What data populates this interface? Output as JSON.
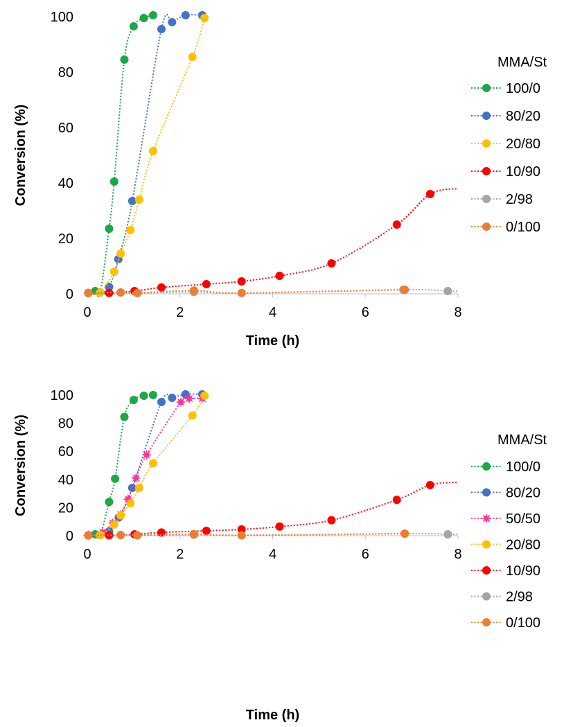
{
  "chart_data": [
    {
      "type": "scatter",
      "title": "",
      "xlabel": "Time (h)",
      "ylabel": "Conversion (%)",
      "xlim": [
        0,
        8
      ],
      "ylim": [
        0,
        100
      ],
      "xticks": [
        0,
        2,
        4,
        6,
        8
      ],
      "yticks": [
        0,
        20,
        40,
        60,
        80,
        100
      ],
      "grid": false,
      "legend_title": "MMA/St",
      "legend_position": "right",
      "line_style": "dotted smoothed",
      "series": [
        {
          "name": "100/0",
          "color": "#1aa84a",
          "marker": "circle",
          "points": [
            [
              0.02,
              0.3
            ],
            [
              0.17,
              1
            ],
            [
              0.28,
              0.5
            ],
            [
              0.47,
              23.5
            ],
            [
              0.58,
              40.5
            ],
            [
              0.8,
              84.5
            ],
            [
              1.0,
              96.5
            ],
            [
              1.22,
              99.5
            ],
            [
              1.42,
              100.5
            ]
          ]
        },
        {
          "name": "80/20",
          "color": "#4472c4",
          "marker": "circle",
          "points": [
            [
              0.02,
              0.3
            ],
            [
              0.28,
              0.5
            ],
            [
              0.47,
              2.5
            ],
            [
              0.67,
              12.5
            ],
            [
              0.97,
              33.5
            ],
            [
              1.6,
              95.5
            ],
            [
              1.83,
              98
            ],
            [
              2.12,
              100.5
            ],
            [
              2.48,
              100.5
            ]
          ]
        },
        {
          "name": "20/80",
          "color": "#ffc000",
          "marker": "circle",
          "points": [
            [
              0.02,
              0.3
            ],
            [
              0.28,
              0.5
            ],
            [
              0.58,
              8
            ],
            [
              0.72,
              14.5
            ],
            [
              0.93,
              23
            ],
            [
              1.12,
              34
            ],
            [
              1.42,
              51.5
            ],
            [
              2.27,
              85.5
            ],
            [
              2.53,
              99.5
            ]
          ]
        },
        {
          "name": "10/90",
          "color": "#ff0000",
          "marker": "circle",
          "points": [
            [
              0.02,
              0.3
            ],
            [
              0.47,
              0.3
            ],
            [
              1.02,
              1
            ],
            [
              1.6,
              2.3
            ],
            [
              2.57,
              3.5
            ],
            [
              3.33,
              4.5
            ],
            [
              4.15,
              6.5
            ],
            [
              5.27,
              11
            ],
            [
              6.68,
              25
            ],
            [
              7.4,
              36
            ],
            [
              8.0,
              38
            ]
          ]
        },
        {
          "name": "2/98",
          "color": "#a5a5a5",
          "marker": "circle",
          "points": [
            [
              0.02,
              0.3
            ],
            [
              0.72,
              0.5
            ],
            [
              1.08,
              0.3
            ],
            [
              2.3,
              0.7
            ],
            [
              3.33,
              0.3
            ],
            [
              6.82,
              1.5
            ],
            [
              7.78,
              1
            ],
            [
              8.0,
              1
            ]
          ]
        },
        {
          "name": "0/100",
          "color": "#ed7d31",
          "marker": "circle",
          "points": [
            [
              0.02,
              0.3
            ],
            [
              0.72,
              0.5
            ],
            [
              1.08,
              0.3
            ],
            [
              2.3,
              1.2
            ],
            [
              3.33,
              0.3
            ],
            [
              6.85,
              1.5
            ]
          ]
        }
      ]
    },
    {
      "type": "scatter",
      "title": "",
      "xlabel": "Time (h)",
      "ylabel": "Conversion (%)",
      "xlim": [
        0,
        8
      ],
      "ylim": [
        0,
        100
      ],
      "xticks": [
        0,
        2,
        4,
        6,
        8
      ],
      "yticks": [
        0,
        20,
        40,
        60,
        80,
        100
      ],
      "grid": false,
      "legend_title": "MMA/St",
      "legend_position": "right",
      "line_style": "dotted smoothed",
      "series": [
        {
          "name": "100/0",
          "color": "#1aa84a",
          "marker": "circle",
          "points": [
            [
              0.02,
              0.3
            ],
            [
              0.17,
              1
            ],
            [
              0.28,
              0.5
            ],
            [
              0.47,
              24
            ],
            [
              0.6,
              40.5
            ],
            [
              0.8,
              84.5
            ],
            [
              1.0,
              96.5
            ],
            [
              1.22,
              99.5
            ],
            [
              1.42,
              100
            ]
          ]
        },
        {
          "name": "80/20",
          "color": "#4472c4",
          "marker": "circle",
          "points": [
            [
              0.02,
              0.3
            ],
            [
              0.28,
              0.5
            ],
            [
              0.47,
              3
            ],
            [
              0.68,
              13
            ],
            [
              0.97,
              34
            ],
            [
              1.6,
              95
            ],
            [
              1.83,
              98
            ],
            [
              2.12,
              100.5
            ],
            [
              2.48,
              100.5
            ]
          ]
        },
        {
          "name": "50/50",
          "color": "#ff3399",
          "marker": "star",
          "points": [
            [
              0.02,
              0.3
            ],
            [
              0.33,
              2.5
            ],
            [
              0.55,
              9
            ],
            [
              0.72,
              15
            ],
            [
              0.88,
              26
            ],
            [
              1.05,
              41
            ],
            [
              1.28,
              57.5
            ],
            [
              2.02,
              95
            ],
            [
              2.2,
              97.5
            ],
            [
              2.48,
              97.5
            ]
          ]
        },
        {
          "name": "20/80",
          "color": "#ffc000",
          "marker": "circle",
          "points": [
            [
              0.02,
              0.3
            ],
            [
              0.28,
              0.5
            ],
            [
              0.58,
              8
            ],
            [
              0.72,
              14.5
            ],
            [
              0.93,
              23
            ],
            [
              1.12,
              34
            ],
            [
              1.42,
              51.5
            ],
            [
              2.27,
              85.5
            ],
            [
              2.53,
              99.5
            ]
          ]
        },
        {
          "name": "10/90",
          "color": "#ff0000",
          "marker": "circle",
          "points": [
            [
              0.02,
              0.3
            ],
            [
              0.47,
              0.3
            ],
            [
              1.02,
              1
            ],
            [
              1.6,
              2.3
            ],
            [
              2.57,
              3.5
            ],
            [
              3.33,
              4.5
            ],
            [
              4.15,
              6.5
            ],
            [
              5.27,
              11
            ],
            [
              6.68,
              25.5
            ],
            [
              7.4,
              36
            ],
            [
              8.0,
              38
            ]
          ]
        },
        {
          "name": "2/98",
          "color": "#a5a5a5",
          "marker": "circle",
          "points": [
            [
              0.02,
              0.3
            ],
            [
              0.72,
              0.5
            ],
            [
              1.08,
              0.3
            ],
            [
              2.3,
              0.7
            ],
            [
              3.33,
              0.3
            ],
            [
              6.85,
              1.5
            ],
            [
              7.78,
              1
            ],
            [
              8.0,
              1
            ]
          ]
        },
        {
          "name": "0/100",
          "color": "#ed7d31",
          "marker": "circle",
          "points": [
            [
              0.02,
              0.3
            ],
            [
              0.72,
              0.5
            ],
            [
              1.08,
              0.3
            ],
            [
              2.3,
              1.2
            ],
            [
              3.33,
              0.3
            ],
            [
              6.85,
              1.5
            ]
          ]
        }
      ]
    }
  ]
}
